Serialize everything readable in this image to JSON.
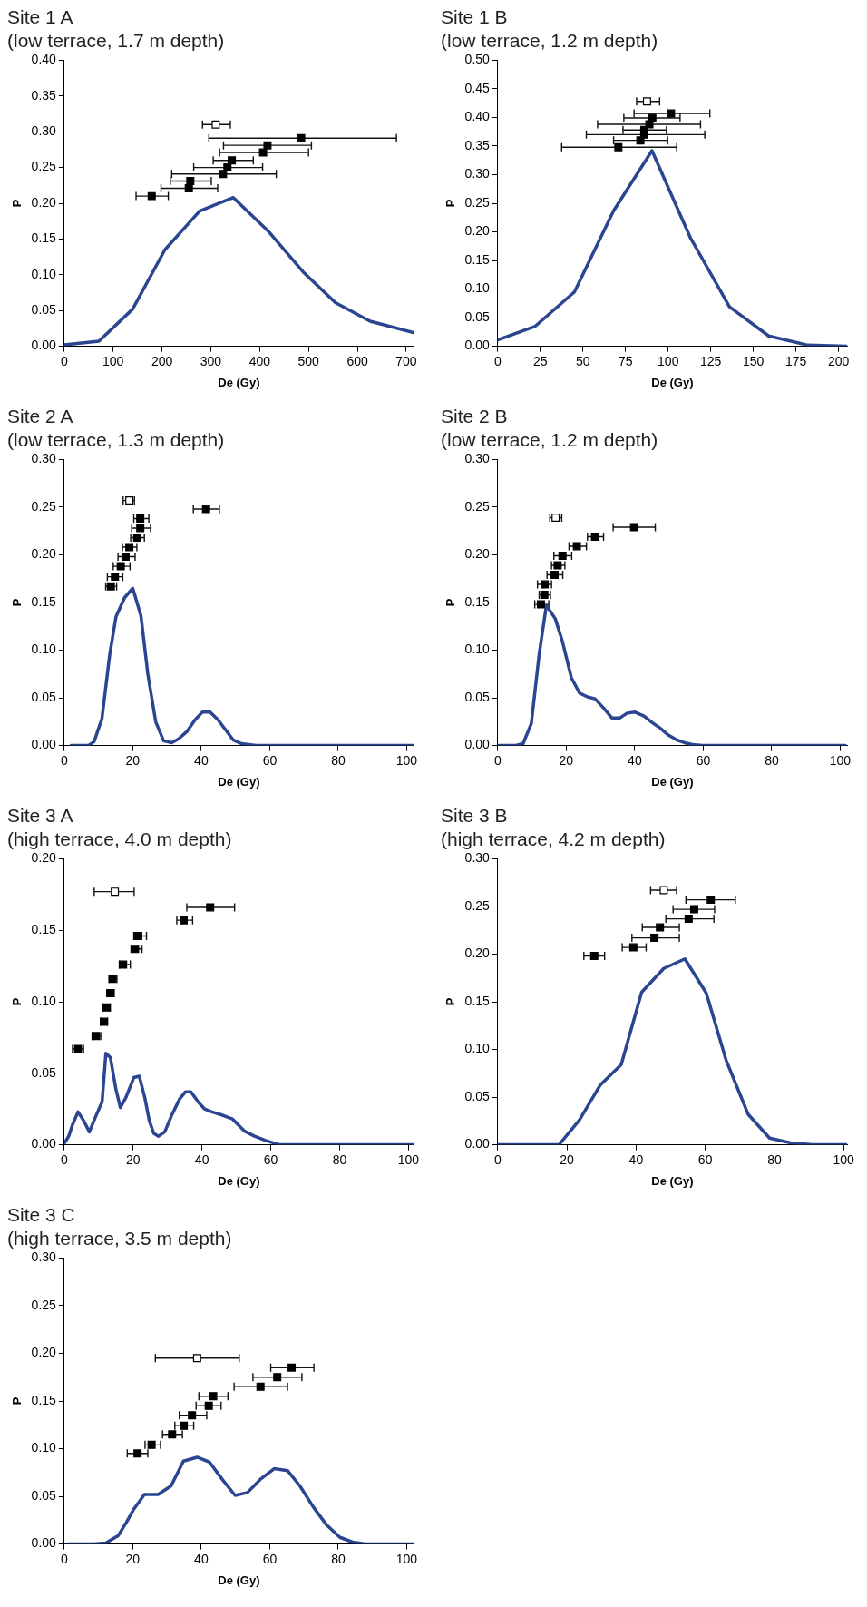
{
  "chart_data": [
    {
      "type": "line",
      "title": "Site 1 A",
      "subtitle": "(low terrace, 1.7 m depth)",
      "xlabel": "De (Gy)",
      "ylabel": "P",
      "xlim": [
        0,
        715
      ],
      "xticks": [
        0,
        100,
        200,
        300,
        400,
        500,
        600,
        700
      ],
      "ylim": [
        0,
        0.4
      ],
      "yticks": [
        {
          "value": 0,
          "label": "0.00"
        },
        {
          "value": 0.05,
          "label": "0.05"
        },
        {
          "value": 0.1,
          "label": "0.10"
        },
        {
          "value": 0.15,
          "label": "0.15"
        },
        {
          "value": 0.2,
          "label": "0.20"
        },
        {
          "value": 0.25,
          "label": "0.25"
        },
        {
          "value": 0.3,
          "label": "0.30"
        },
        {
          "value": 0.35,
          "label": "0.35"
        },
        {
          "value": 0.4,
          "label": "0.40"
        }
      ],
      "grid": false,
      "legend": false,
      "series": [
        {
          "type": "line",
          "color": "#2b4590",
          "x": [
            0,
            71,
            140,
            206,
            277,
            346,
            419,
            489,
            555,
            626,
            715
          ],
          "values": [
            0.002,
            0.007,
            0.052,
            0.135,
            0.189,
            0.208,
            0.16,
            0.104,
            0.061,
            0.035,
            0.019
          ]
        },
        {
          "type": "scatter",
          "color": "#000000",
          "marker": "square",
          "x": [
            485,
            416,
            407,
            343,
            334,
            325,
            258,
            255,
            179
          ],
          "values": [
            0.291,
            0.281,
            0.271,
            0.26,
            0.25,
            0.241,
            0.231,
            0.221,
            0.21
          ],
          "xerrors": [
            [
              296,
              680
            ],
            [
              326,
              506
            ],
            [
              318,
              500
            ],
            [
              305,
              387
            ],
            [
              265,
              406
            ],
            [
              220,
              434
            ],
            [
              217,
              301
            ],
            [
              198,
              314
            ],
            [
              147,
              213
            ]
          ]
        },
        {
          "type": "scatter",
          "color": "#ffffff",
          "marker": "square",
          "x": [
            310
          ],
          "values": [
            0.31
          ],
          "xerrors": [
            [
              283,
              340
            ]
          ]
        }
      ]
    },
    {
      "type": "line",
      "title": "Site 1 B",
      "subtitle": "(low terrace, 1.2 m depth)",
      "xlabel": "De (Gy)",
      "ylabel": "P",
      "xlim": [
        0,
        205
      ],
      "xticks": [
        0,
        25,
        50,
        75,
        100,
        125,
        150,
        175,
        200
      ],
      "ylim": [
        0,
        0.5
      ],
      "yticks": [
        {
          "value": 0,
          "label": "0.00"
        },
        {
          "value": 0.05,
          "label": "0.05"
        },
        {
          "value": 0.1,
          "label": "0.10"
        },
        {
          "value": 0.15,
          "label": "0.15"
        },
        {
          "value": 0.2,
          "label": "0.20"
        },
        {
          "value": 0.25,
          "label": "0.25"
        },
        {
          "value": 0.3,
          "label": "0.30"
        },
        {
          "value": 0.35,
          "label": "0.35"
        },
        {
          "value": 0.4,
          "label": "0.40"
        },
        {
          "value": 0.45,
          "label": "0.45"
        },
        {
          "value": 0.5,
          "label": "0.50"
        }
      ],
      "grid": false,
      "legend": false,
      "series": [
        {
          "type": "line",
          "color": "#2b4590",
          "x": [
            0,
            22,
            45,
            68,
            90.5,
            113,
            136,
            159,
            182,
            205
          ],
          "values": [
            0.011,
            0.035,
            0.095,
            0.237,
            0.342,
            0.19,
            0.069,
            0.018,
            0.002,
            0
          ]
        },
        {
          "type": "scatter",
          "color": "#000000",
          "marker": "square",
          "x": [
            101.7,
            90.7,
            89,
            86,
            86,
            83.7,
            70.8
          ],
          "values": [
            0.407,
            0.399,
            0.388,
            0.378,
            0.37,
            0.36,
            0.348
          ],
          "xerrors": [
            [
              80,
              124.5
            ],
            [
              74,
              107
            ],
            [
              58.6,
              119
            ],
            [
              73.5,
              99
            ],
            [
              52,
              121.5
            ],
            [
              68,
              99.7
            ],
            [
              37.5,
              105
            ]
          ]
        },
        {
          "type": "scatter",
          "color": "#ffffff",
          "marker": "square",
          "x": [
            87.6
          ],
          "values": [
            0.428
          ],
          "xerrors": [
            [
              81.5,
              95
            ]
          ]
        }
      ]
    },
    {
      "type": "line",
      "title": "Site 2 A",
      "subtitle": "(low terrace, 1.3 m depth)",
      "xlabel": "De (Gy)",
      "ylabel": "P",
      "xlim": [
        0,
        102
      ],
      "xticks": [
        0,
        20,
        40,
        60,
        80,
        100
      ],
      "ylim": [
        0,
        0.3
      ],
      "yticks": [
        {
          "value": 0,
          "label": "0.00"
        },
        {
          "value": 0.05,
          "label": "0.05"
        },
        {
          "value": 0.1,
          "label": "0.10"
        },
        {
          "value": 0.15,
          "label": "0.15"
        },
        {
          "value": 0.2,
          "label": "0.20"
        },
        {
          "value": 0.25,
          "label": "0.25"
        },
        {
          "value": 0.3,
          "label": "0.30"
        }
      ],
      "grid": false,
      "legend": false,
      "series": [
        {
          "type": "line",
          "color": "#2b4590",
          "x": [
            2,
            7,
            8.7,
            11,
            13.3,
            15.1,
            17.6,
            20,
            22.4,
            24.4,
            26.7,
            29,
            31.4,
            33.4,
            35.9,
            38.2,
            40.3,
            42.6,
            44.9,
            47.2,
            49.3,
            51.7,
            56,
            102
          ],
          "values": [
            0,
            0,
            0.004,
            0.028,
            0.096,
            0.135,
            0.155,
            0.165,
            0.136,
            0.075,
            0.025,
            0.005,
            0.003,
            0.007,
            0.015,
            0.027,
            0.035,
            0.035,
            0.027,
            0.016,
            0.006,
            0.002,
            0,
            0
          ]
        },
        {
          "type": "scatter",
          "color": "#000000",
          "marker": "square",
          "x": [
            13.6,
            14.8,
            16.5,
            17.9,
            19,
            21.3,
            22.2,
            22.2,
            41.4
          ],
          "values": [
            0.167,
            0.177,
            0.188,
            0.198,
            0.208,
            0.218,
            0.228,
            0.238,
            0.248
          ],
          "xerrors": [
            [
              12.1,
              15.3
            ],
            [
              12.6,
              17.1
            ],
            [
              14.3,
              19.2
            ],
            [
              15.7,
              20.7
            ],
            [
              17,
              21.2
            ],
            [
              19.4,
              23.4
            ],
            [
              19.7,
              25.2
            ],
            [
              20.3,
              24.7
            ],
            [
              37.7,
              45.3
            ]
          ]
        },
        {
          "type": "scatter",
          "color": "#ffffff",
          "marker": "square",
          "x": [
            19
          ],
          "values": [
            0.257
          ],
          "xerrors": [
            [
              17.2,
              20.5
            ]
          ]
        }
      ]
    },
    {
      "type": "line",
      "title": "Site 2 B",
      "subtitle": "(low terrace, 1.2 m depth)",
      "xlabel": "De (Gy)",
      "ylabel": "P",
      "xlim": [
        0,
        102
      ],
      "xticks": [
        0,
        20,
        40,
        60,
        80,
        100
      ],
      "ylim": [
        0,
        0.3
      ],
      "yticks": [
        {
          "value": 0,
          "label": "0.00"
        },
        {
          "value": 0.05,
          "label": "0.05"
        },
        {
          "value": 0.1,
          "label": "0.10"
        },
        {
          "value": 0.15,
          "label": "0.15"
        },
        {
          "value": 0.2,
          "label": "0.20"
        },
        {
          "value": 0.25,
          "label": "0.25"
        },
        {
          "value": 0.3,
          "label": "0.30"
        }
      ],
      "grid": false,
      "legend": false,
      "series": [
        {
          "type": "line",
          "color": "#2b4590",
          "x": [
            0.3,
            5,
            7.4,
            9.8,
            12.1,
            14.2,
            16.8,
            18.9,
            21.5,
            23.9,
            26.2,
            28.4,
            31,
            33.3,
            35.7,
            37.8,
            40.1,
            42.7,
            45.1,
            47.5,
            49.8,
            52.2,
            54.5,
            56.9,
            59.7,
            101.5
          ],
          "values": [
            0,
            0,
            0.002,
            0.023,
            0.096,
            0.147,
            0.133,
            0.109,
            0.071,
            0.055,
            0.051,
            0.049,
            0.039,
            0.029,
            0.029,
            0.034,
            0.035,
            0.031,
            0.024,
            0.018,
            0.011,
            0.006,
            0.003,
            0.001,
            0,
            0
          ]
        },
        {
          "type": "scatter",
          "color": "#000000",
          "marker": "square",
          "x": [
            12.6,
            13.6,
            13.7,
            16.6,
            17.5,
            18.9,
            23.1,
            28.4,
            39.8
          ],
          "values": [
            0.148,
            0.158,
            0.169,
            0.179,
            0.189,
            0.199,
            0.209,
            0.219,
            0.229
          ],
          "xerrors": [
            [
              10.8,
              14.9
            ],
            [
              12.1,
              15.4
            ],
            [
              11.6,
              15.7
            ],
            [
              14.4,
              19
            ],
            [
              15.7,
              19.6
            ],
            [
              16.4,
              21.6
            ],
            [
              20.8,
              25.9
            ],
            [
              26.2,
              30.9
            ],
            [
              33.7,
              46
            ]
          ]
        },
        {
          "type": "scatter",
          "color": "#ffffff",
          "marker": "square",
          "x": [
            16.9
          ],
          "values": [
            0.239
          ],
          "xerrors": [
            [
              15.2,
              18.7
            ]
          ]
        }
      ]
    },
    {
      "type": "line",
      "title": "Site 3 A",
      "subtitle": "(high terrace, 4.0 m depth)",
      "xlabel": "De (Gy)",
      "ylabel": "P",
      "xlim": [
        0,
        101.5
      ],
      "xticks": [
        0,
        20,
        40,
        60,
        80,
        100
      ],
      "ylim": [
        0,
        0.2
      ],
      "yticks": [
        {
          "value": 0,
          "label": "0.00"
        },
        {
          "value": 0.05,
          "label": "0.05"
        },
        {
          "value": 0.1,
          "label": "0.10"
        },
        {
          "value": 0.15,
          "label": "0.15"
        },
        {
          "value": 0.2,
          "label": "0.20"
        }
      ],
      "grid": false,
      "legend": false,
      "series": [
        {
          "type": "line",
          "color": "#2b4590",
          "x": [
            0,
            1.3,
            2.4,
            4,
            5.6,
            7.3,
            9,
            11,
            12.1,
            13.4,
            15,
            16.3,
            17.9,
            20.2,
            21.8,
            23.4,
            24.7,
            26,
            27.4,
            29.2,
            31.1,
            33.5,
            35.2,
            36.8,
            38.9,
            40.8,
            42.9,
            45.6,
            48.9,
            52.4,
            55.3,
            58.5,
            62.6,
            101.5
          ],
          "values": [
            0.001,
            0.006,
            0.014,
            0.023,
            0.017,
            0.009,
            0.019,
            0.03,
            0.064,
            0.061,
            0.039,
            0.026,
            0.033,
            0.047,
            0.048,
            0.033,
            0.017,
            0.008,
            0.006,
            0.009,
            0.02,
            0.032,
            0.037,
            0.037,
            0.03,
            0.025,
            0.023,
            0.021,
            0.018,
            0.0095,
            0.006,
            0.003,
            0,
            0
          ]
        },
        {
          "type": "scatter",
          "color": "#000000",
          "marker": "square",
          "x": [
            4,
            9.2,
            11.5,
            12.3,
            13.4,
            14,
            17.1,
            20.6,
            21.5,
            34.7,
            42.4
          ],
          "values": [
            0.067,
            0.076,
            0.086,
            0.096,
            0.106,
            0.116,
            0.126,
            0.137,
            0.146,
            0.157,
            0.166
          ],
          "xerrors": [
            [
              2.4,
              5.6
            ],
            [
              8.1,
              10.6
            ],
            [
              10.6,
              12.6
            ],
            [
              11.3,
              13.4
            ],
            [
              12.4,
              14.5
            ],
            [
              13.1,
              15.3
            ],
            [
              16,
              19.2
            ],
            [
              19.4,
              22.6
            ],
            [
              20.2,
              23.9
            ],
            [
              32.7,
              37.3
            ],
            [
              35.6,
              49.5
            ]
          ]
        },
        {
          "type": "scatter",
          "color": "#ffffff",
          "marker": "square",
          "x": [
            14.7
          ],
          "values": [
            0.177
          ],
          "xerrors": [
            [
              8.7,
              20.3
            ]
          ]
        }
      ]
    },
    {
      "type": "line",
      "title": "Site 3 B",
      "subtitle": "(high terrace, 4.2 m depth)",
      "xlabel": "De (Gy)",
      "ylabel": "P",
      "xlim": [
        0,
        101
      ],
      "xticks": [
        0,
        20,
        40,
        60,
        80,
        100
      ],
      "ylim": [
        0,
        0.3
      ],
      "yticks": [
        {
          "value": 0,
          "label": "0.00"
        },
        {
          "value": 0.05,
          "label": "0.05"
        },
        {
          "value": 0.1,
          "label": "0.10"
        },
        {
          "value": 0.15,
          "label": "0.15"
        },
        {
          "value": 0.2,
          "label": "0.20"
        },
        {
          "value": 0.25,
          "label": "0.25"
        },
        {
          "value": 0.3,
          "label": "0.30"
        }
      ],
      "grid": false,
      "legend": false,
      "series": [
        {
          "type": "line",
          "color": "#2b4590",
          "x": [
            0,
            17.7,
            23.6,
            29.7,
            35.7,
            41.6,
            48,
            54.1,
            60.3,
            66,
            72.4,
            78.6,
            84.7,
            91,
            101
          ],
          "values": [
            0,
            0,
            0.026,
            0.063,
            0.084,
            0.16,
            0.185,
            0.195,
            0.159,
            0.089,
            0.032,
            0.007,
            0.002,
            0,
            0
          ]
        },
        {
          "type": "scatter",
          "color": "#000000",
          "marker": "square",
          "x": [
            27.9,
            39.2,
            45.3,
            46.9,
            55.2,
            56.8,
            61.6
          ],
          "values": [
            0.198,
            0.207,
            0.217,
            0.228,
            0.237,
            0.247,
            0.257
          ],
          "xerrors": [
            [
              24.9,
              30.9
            ],
            [
              36,
              42.9
            ],
            [
              38.8,
              52.5
            ],
            [
              41.8,
              52.5
            ],
            [
              48.6,
              62.5
            ],
            [
              50.7,
              62.7
            ],
            [
              54.4,
              68.7
            ]
          ]
        },
        {
          "type": "scatter",
          "color": "#ffffff",
          "marker": "square",
          "x": [
            48
          ],
          "values": [
            0.267
          ],
          "xerrors": [
            [
              44.2,
              51.7
            ]
          ]
        }
      ]
    },
    {
      "type": "line",
      "title": "Site 3 C",
      "subtitle": "(high terrace, 3.5 m depth)",
      "xlabel": "De (Gy)",
      "ylabel": "P",
      "xlim": [
        0,
        102
      ],
      "xticks": [
        0,
        20,
        40,
        60,
        80,
        100
      ],
      "ylim": [
        0,
        0.3
      ],
      "yticks": [
        {
          "value": 0,
          "label": "0.00"
        },
        {
          "value": 0.05,
          "label": "0.05"
        },
        {
          "value": 0.1,
          "label": "0.10"
        },
        {
          "value": 0.15,
          "label": "0.15"
        },
        {
          "value": 0.2,
          "label": "0.20"
        },
        {
          "value": 0.25,
          "label": "0.25"
        },
        {
          "value": 0.3,
          "label": "0.30"
        }
      ],
      "grid": false,
      "legend": false,
      "series": [
        {
          "type": "line",
          "color": "#2b4590",
          "x": [
            1,
            8.7,
            12.1,
            15.8,
            18.2,
            20.2,
            23.4,
            27.4,
            31.2,
            34.8,
            38.8,
            42.4,
            46.1,
            49.9,
            53.5,
            57.3,
            61.3,
            65.2,
            68.8,
            72.7,
            76.6,
            80.5,
            84.2,
            87.9,
            102
          ],
          "values": [
            0,
            0,
            0.001,
            0.009,
            0.023,
            0.036,
            0.052,
            0.052,
            0.061,
            0.087,
            0.091,
            0.086,
            0.068,
            0.051,
            0.054,
            0.068,
            0.079,
            0.077,
            0.061,
            0.039,
            0.02,
            0.007,
            0.002,
            0,
            0
          ]
        },
        {
          "type": "scatter",
          "color": "#000000",
          "marker": "square",
          "x": [
            21.4,
            25.5,
            31.5,
            34.9,
            37.3,
            42.2,
            43.5,
            57.3,
            62.2,
            66.4
          ],
          "values": [
            0.095,
            0.104,
            0.115,
            0.124,
            0.135,
            0.145,
            0.155,
            0.165,
            0.175,
            0.185
          ],
          "xerrors": [
            [
              18.4,
              24.4
            ],
            [
              23.6,
              28.1
            ],
            [
              28.7,
              34.5
            ],
            [
              32.3,
              37.8
            ],
            [
              33.6,
              41.6
            ],
            [
              38.5,
              45.8
            ],
            [
              39.3,
              47.8
            ],
            [
              49.6,
              65.2
            ],
            [
              55.1,
              69.4
            ],
            [
              60.3,
              72.9
            ]
          ]
        },
        {
          "type": "scatter",
          "color": "#ffffff",
          "marker": "square",
          "x": [
            38.8
          ],
          "values": [
            0.195
          ],
          "xerrors": [
            [
              26.6,
              51.1
            ]
          ]
        }
      ]
    }
  ]
}
